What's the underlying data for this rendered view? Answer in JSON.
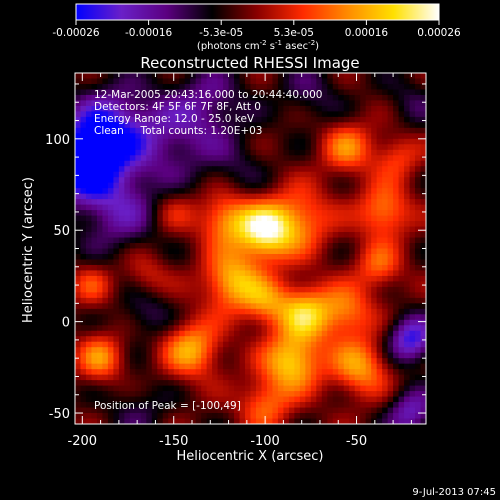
{
  "colorbar": {
    "ticks": [
      "-0.00026",
      "-0.00016",
      "-5.3e-05",
      "5.3e-05",
      "0.00016",
      "0.00026"
    ],
    "unit_main": "(photons cm",
    "unit_sup1": "-2",
    "unit_mid": " s",
    "unit_sup2": "-1",
    "unit_end": " asec",
    "unit_sup3": "-2",
    "unit_close": ")"
  },
  "annotations": {
    "time_range": "12-Mar-2005 20:43:16.000 to 20:44:40.000",
    "detectors": "Detectors: 4F 5F 6F 7F 8F, Att 0",
    "energy": "Energy Range: 12.0 - 25.0 keV",
    "clean": "Clean     Total counts: 1.20E+03",
    "peak": "Position of Peak = [-100,49]"
  },
  "footer": {
    "date": "9-Jul-2013 07:45"
  },
  "colors": {
    "background": "#000000",
    "text": "#ffffff"
  },
  "chart_data": {
    "type": "heatmap",
    "title": "Reconstructed RHESSI Image",
    "xlabel": "Heliocentric X (arcsec)",
    "ylabel": "Heliocentric Y (arcsec)",
    "xlim": [
      -204,
      -12
    ],
    "ylim": [
      -56,
      136
    ],
    "x_ticks": [
      -200,
      -150,
      -100,
      -50
    ],
    "y_ticks": [
      -50,
      0,
      50,
      100
    ],
    "x_tick_labels": [
      "-200",
      "-150",
      "-100",
      "-50"
    ],
    "y_tick_labels": [
      "-50",
      "0",
      "50",
      "100"
    ],
    "value_range": [
      -0.00026,
      0.00026
    ],
    "peak_position": [
      -100,
      49
    ],
    "colormap": [
      "#0000ff",
      "#6a1fc8",
      "#5b0080",
      "#000000",
      "#8b0000",
      "#ff2a00",
      "#ff8c00",
      "#ffe000",
      "#ffffff"
    ],
    "blobs": [
      {
        "x": -199,
        "y": 87,
        "v": -0.00026,
        "r": 14
      },
      {
        "x": -185,
        "y": 105,
        "v": -0.00018,
        "r": 16
      },
      {
        "x": -180,
        "y": 60,
        "v": -0.00012,
        "r": 16
      },
      {
        "x": -150,
        "y": 100,
        "v": -0.0001,
        "r": 18
      },
      {
        "x": -100,
        "y": 49,
        "v": 0.00026,
        "r": 11
      },
      {
        "x": -122,
        "y": 56,
        "v": 0.00016,
        "r": 10
      },
      {
        "x": -80,
        "y": 56,
        "v": 0.00014,
        "r": 12
      },
      {
        "x": -118,
        "y": 22,
        "v": 0.0002,
        "r": 11
      },
      {
        "x": -100,
        "y": 10,
        "v": 0.00013,
        "r": 9
      },
      {
        "x": -78,
        "y": 5,
        "v": 0.0002,
        "r": 11
      },
      {
        "x": -55,
        "y": 5,
        "v": 0.00014,
        "r": 10
      },
      {
        "x": -140,
        "y": -15,
        "v": 0.00018,
        "r": 11
      },
      {
        "x": -85,
        "y": -22,
        "v": 0.00022,
        "r": 11
      },
      {
        "x": -48,
        "y": -25,
        "v": 0.00017,
        "r": 11
      },
      {
        "x": -190,
        "y": -20,
        "v": 0.00015,
        "r": 9
      },
      {
        "x": -195,
        "y": 20,
        "v": 9e-05,
        "r": 8
      },
      {
        "x": -100,
        "y": -45,
        "v": 0.00013,
        "r": 10
      },
      {
        "x": -55,
        "y": 95,
        "v": 0.00014,
        "r": 10
      },
      {
        "x": -28,
        "y": 90,
        "v": 0.0001,
        "r": 9
      },
      {
        "x": -35,
        "y": 60,
        "v": 0.00016,
        "r": 10
      },
      {
        "x": -38,
        "y": 30,
        "v": 0.00012,
        "r": 9
      },
      {
        "x": -165,
        "y": 25,
        "v": 8e-05,
        "r": 9
      },
      {
        "x": -150,
        "y": 60,
        "v": 7e-05,
        "r": 9
      },
      {
        "x": -20,
        "y": -10,
        "v": -0.0002,
        "r": 9
      },
      {
        "x": -20,
        "y": -50,
        "v": -0.00015,
        "r": 9
      },
      {
        "x": -170,
        "y": -48,
        "v": -6e-05,
        "r": 12
      },
      {
        "x": -130,
        "y": 120,
        "v": -9e-05,
        "r": 14
      },
      {
        "x": -75,
        "y": 125,
        "v": -7e-05,
        "r": 12
      },
      {
        "x": -165,
        "y": 5,
        "v": -8e-05,
        "r": 10
      },
      {
        "x": -115,
        "y": 85,
        "v": -5e-05,
        "r": 11
      },
      {
        "x": -20,
        "y": 120,
        "v": -6e-05,
        "r": 10
      }
    ]
  }
}
